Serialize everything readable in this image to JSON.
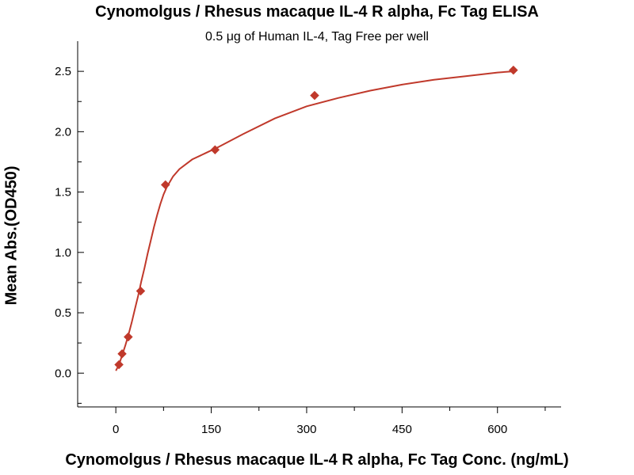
{
  "chart_data": {
    "type": "scatter",
    "title": "Cynomolgus / Rhesus macaque IL-4 R alpha, Fc Tag ELISA",
    "subtitle": "0.5 μg of Human IL-4, Tag Free per well",
    "xlabel": "Cynomolgus / Rhesus macaque IL-4 R alpha, Fc Tag Conc. (ng/mL)",
    "ylabel": "Mean Abs.(OD450)",
    "xlim": [
      -60,
      700
    ],
    "ylim": [
      -0.28,
      2.75
    ],
    "xticks": [
      0,
      150,
      300,
      450,
      600
    ],
    "xtick_labels": [
      "0",
      "150",
      "300",
      "450",
      "600"
    ],
    "yticks": [
      0.0,
      0.5,
      1.0,
      1.5,
      2.0,
      2.5
    ],
    "ytick_labels": [
      "0.0",
      "0.5",
      "1.0",
      "1.5",
      "2.0",
      "2.5"
    ],
    "grid": false,
    "series": [
      {
        "marker": "diamond",
        "color": "#c0392b",
        "points": [
          {
            "x": 4.9,
            "y": 0.07
          },
          {
            "x": 9.8,
            "y": 0.16
          },
          {
            "x": 19.5,
            "y": 0.3
          },
          {
            "x": 39,
            "y": 0.68
          },
          {
            "x": 78,
            "y": 1.56
          },
          {
            "x": 156,
            "y": 1.85
          },
          {
            "x": 312.5,
            "y": 2.3
          },
          {
            "x": 625,
            "y": 2.51
          }
        ]
      }
    ],
    "fit_curve": {
      "color": "#c0392b",
      "points": [
        [
          0,
          0.02
        ],
        [
          5,
          0.07
        ],
        [
          10,
          0.15
        ],
        [
          15,
          0.23
        ],
        [
          20,
          0.32
        ],
        [
          25,
          0.42
        ],
        [
          30,
          0.53
        ],
        [
          35,
          0.64
        ],
        [
          40,
          0.76
        ],
        [
          45,
          0.87
        ],
        [
          50,
          0.99
        ],
        [
          55,
          1.1
        ],
        [
          60,
          1.21
        ],
        [
          65,
          1.31
        ],
        [
          70,
          1.4
        ],
        [
          75,
          1.48
        ],
        [
          80,
          1.54
        ],
        [
          90,
          1.63
        ],
        [
          100,
          1.69
        ],
        [
          120,
          1.77
        ],
        [
          140,
          1.82
        ],
        [
          160,
          1.87
        ],
        [
          200,
          1.98
        ],
        [
          250,
          2.11
        ],
        [
          300,
          2.21
        ],
        [
          350,
          2.28
        ],
        [
          400,
          2.34
        ],
        [
          450,
          2.39
        ],
        [
          500,
          2.43
        ],
        [
          550,
          2.46
        ],
        [
          600,
          2.49
        ],
        [
          625,
          2.5
        ]
      ]
    }
  }
}
